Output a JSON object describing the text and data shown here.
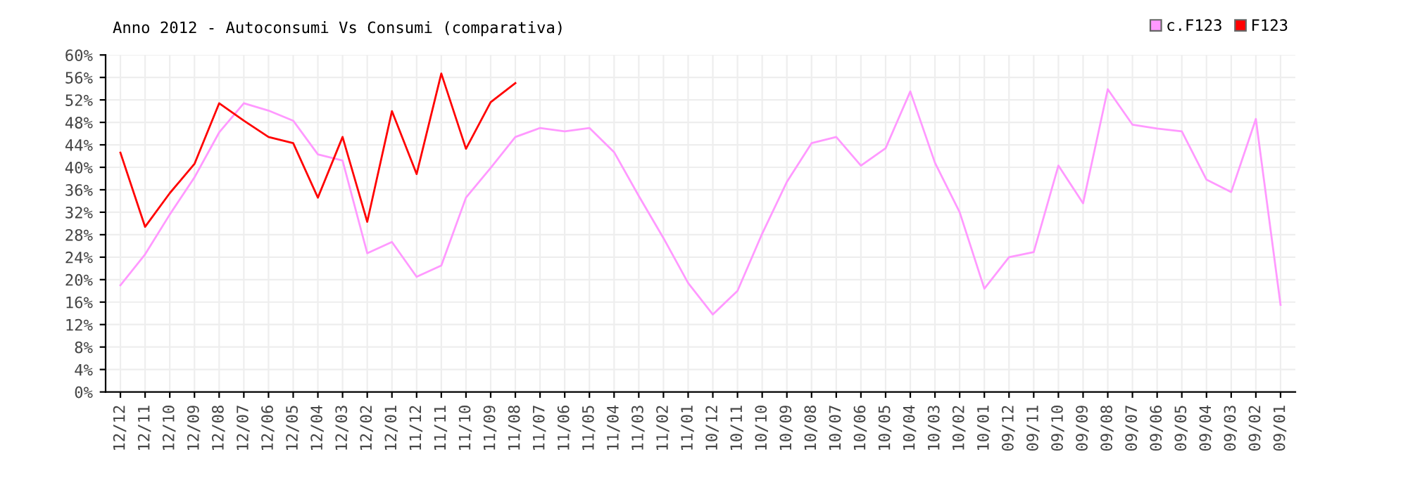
{
  "chart_data": {
    "type": "line",
    "title": "Anno 2012 - Autoconsumi Vs Consumi (comparativa)",
    "categories": [
      "12/12",
      "12/11",
      "12/10",
      "12/09",
      "12/08",
      "12/07",
      "12/06",
      "12/05",
      "12/04",
      "12/03",
      "12/02",
      "12/01",
      "11/12",
      "11/11",
      "11/10",
      "11/09",
      "11/08",
      "11/07",
      "11/06",
      "11/05",
      "11/04",
      "11/03",
      "11/02",
      "11/01",
      "10/12",
      "10/11",
      "10/10",
      "10/09",
      "10/08",
      "10/07",
      "10/06",
      "10/05",
      "10/04",
      "10/03",
      "10/02",
      "10/01",
      "09/12",
      "09/11",
      "09/10",
      "09/09",
      "09/08",
      "09/07",
      "09/06",
      "09/05",
      "09/04",
      "09/03",
      "09/02",
      "09/01"
    ],
    "series": [
      {
        "name": "c.F123",
        "color": "#ff99ff",
        "values": [
          19.0,
          24.5,
          31.6,
          38.2,
          46.2,
          51.4,
          50.1,
          48.3,
          42.3,
          41.2,
          24.7,
          26.7,
          20.5,
          22.5,
          34.6,
          39.9,
          45.4,
          47.0,
          46.4,
          47.0,
          42.7,
          34.9,
          27.4,
          19.4,
          13.8,
          18.0,
          28.2,
          37.4,
          44.3,
          45.4,
          40.3,
          43.4,
          53.5,
          40.8,
          32.0,
          18.4,
          24.0,
          24.9,
          40.3,
          33.6,
          53.9,
          47.6,
          46.9,
          46.4,
          37.8,
          35.6,
          48.6,
          15.5
        ]
      },
      {
        "name": "F123",
        "color": "#ff0000",
        "values": [
          42.6,
          29.4,
          35.4,
          40.6,
          51.4,
          48.3,
          45.4,
          44.3,
          34.6,
          45.4,
          30.3,
          50.0,
          38.8,
          56.7,
          43.3,
          51.6,
          55.0,
          null,
          null,
          null,
          null,
          null,
          null,
          null,
          null,
          null,
          null,
          null,
          null,
          null,
          null,
          null,
          null,
          null,
          null,
          null,
          null,
          null,
          null,
          null,
          null,
          null,
          null,
          null,
          null,
          null,
          null,
          null
        ]
      }
    ],
    "ylim": [
      0,
      60
    ],
    "yticks": [
      {
        "value": 0,
        "label": "0%"
      },
      {
        "value": 4,
        "label": "4%"
      },
      {
        "value": 8,
        "label": "8%"
      },
      {
        "value": 12,
        "label": "12%"
      },
      {
        "value": 16,
        "label": "16%"
      },
      {
        "value": 20,
        "label": "20%"
      },
      {
        "value": 24,
        "label": "24%"
      },
      {
        "value": 28,
        "label": "28%"
      },
      {
        "value": 32,
        "label": "32%"
      },
      {
        "value": 36,
        "label": "36%"
      },
      {
        "value": 40,
        "label": "40%"
      },
      {
        "value": 44,
        "label": "44%"
      },
      {
        "value": 48,
        "label": "48%"
      },
      {
        "value": 52,
        "label": "52%"
      },
      {
        "value": 56,
        "label": "56%"
      },
      {
        "value": 60,
        "label": "60%"
      }
    ],
    "grid": true,
    "legend": "top right",
    "marker": "none",
    "line_style": "solid"
  }
}
